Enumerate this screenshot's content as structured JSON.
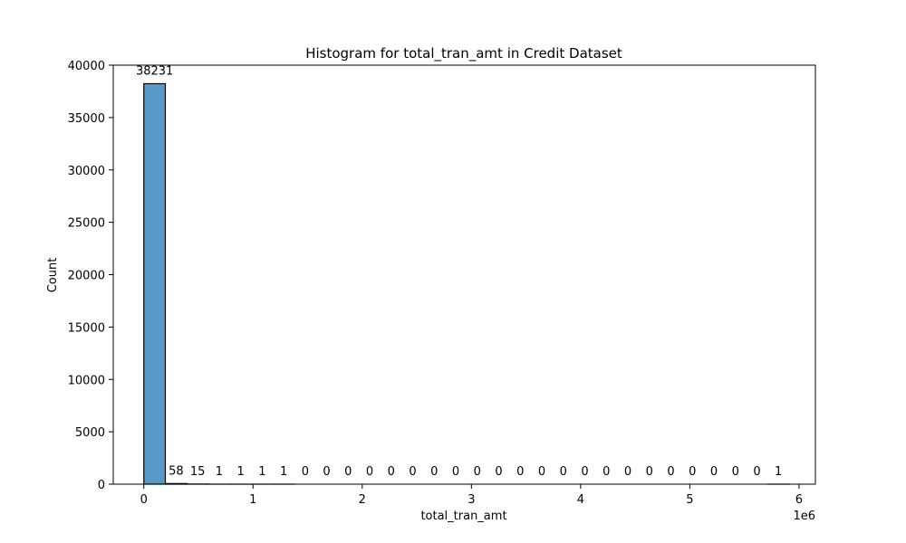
{
  "chart_data": {
    "type": "bar",
    "title": "Histogram for total_tran_amt in Credit Dataset",
    "xlabel": "total_tran_amt",
    "ylabel": "Count",
    "x_offset_label": "1e6",
    "bin_start": 0,
    "bin_width": 197000,
    "values": [
      38231,
      58,
      15,
      1,
      1,
      1,
      1,
      0,
      0,
      0,
      0,
      0,
      0,
      0,
      0,
      0,
      0,
      0,
      0,
      0,
      0,
      0,
      0,
      0,
      0,
      0,
      0,
      0,
      0,
      1
    ],
    "xlim": [
      -280000,
      6150000
    ],
    "ylim": [
      0,
      40000
    ],
    "xticks": [
      0,
      1000000,
      2000000,
      3000000,
      4000000,
      5000000,
      6000000
    ],
    "xtick_labels": [
      "0",
      "1",
      "2",
      "3",
      "4",
      "5",
      "6"
    ],
    "yticks": [
      0,
      5000,
      10000,
      15000,
      20000,
      25000,
      30000,
      35000,
      40000
    ],
    "ytick_labels": [
      "0",
      "5000",
      "10000",
      "15000",
      "20000",
      "25000",
      "30000",
      "35000",
      "40000"
    ],
    "bar_color": "#5799c7",
    "grid": false,
    "legend": "none"
  }
}
